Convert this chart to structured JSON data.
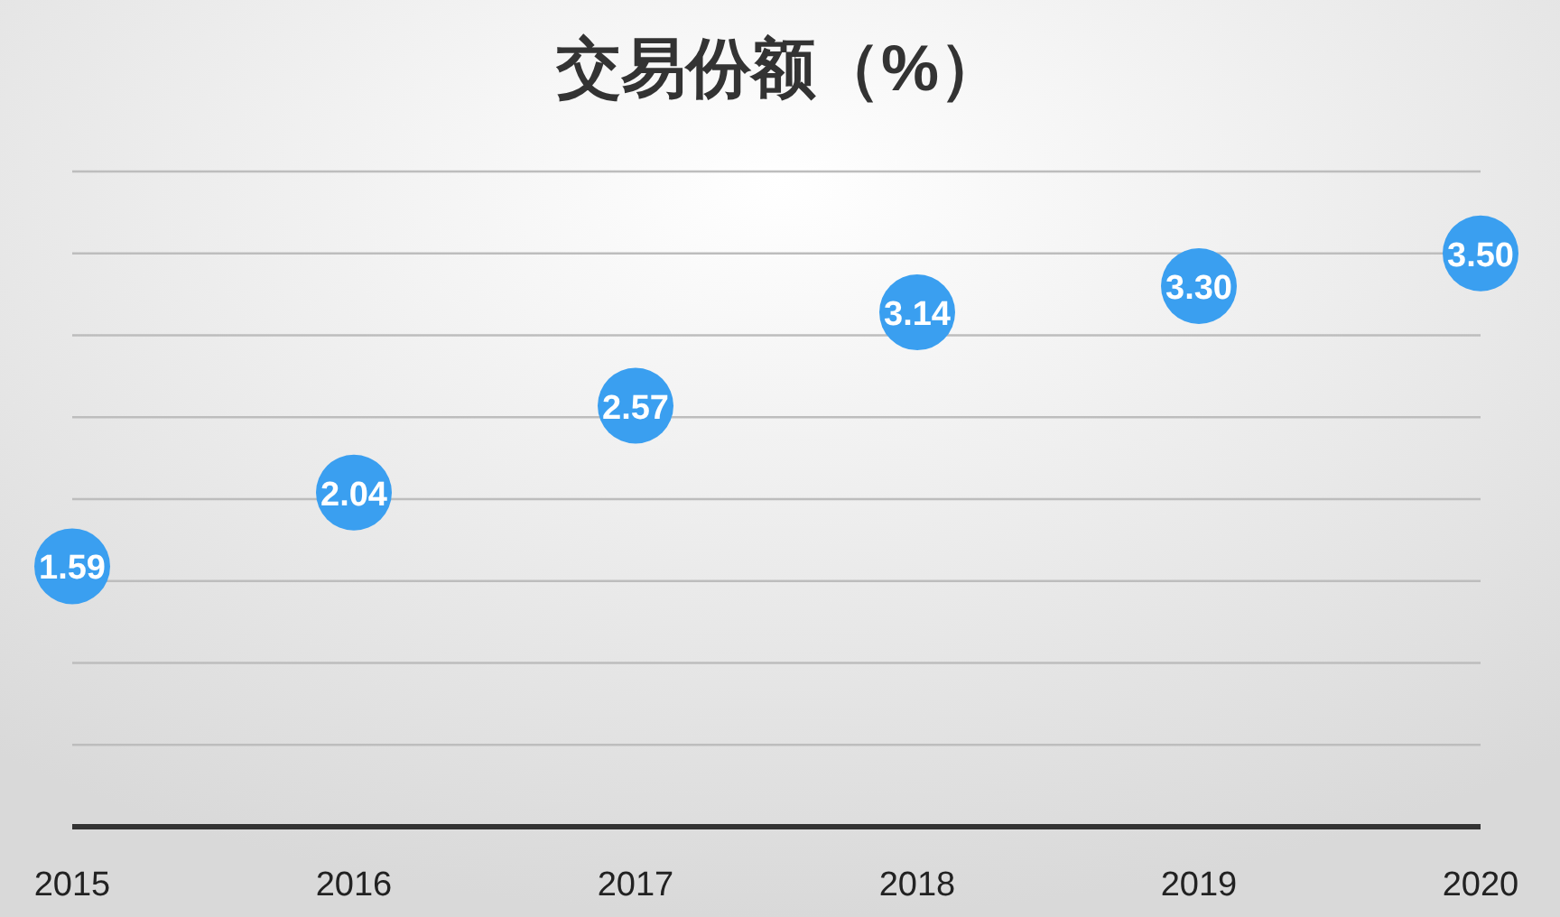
{
  "chart_data": {
    "type": "scatter",
    "title": "交易份额（%）",
    "categories": [
      "2015",
      "2016",
      "2017",
      "2018",
      "2019",
      "2020"
    ],
    "series": [
      {
        "color": "#3a9ff0",
        "values": [
          1.59,
          2.04,
          2.57,
          3.14,
          3.3,
          3.5
        ],
        "value_labels": [
          "1.59",
          "2.04",
          "2.57",
          "3.14",
          "3.30",
          "3.50"
        ]
      }
    ],
    "ylim": [
      0,
      4
    ],
    "yticks": [
      {
        "value": 0,
        "label": null
      },
      {
        "value": 0.5,
        "label": null
      },
      {
        "value": 1,
        "label": null
      },
      {
        "value": 1.5,
        "label": null
      },
      {
        "value": 2,
        "label": null
      },
      {
        "value": 2.5,
        "label": null
      },
      {
        "value": 3,
        "label": null
      },
      {
        "value": 3.5,
        "label": null
      },
      {
        "value": 4,
        "label": null
      }
    ],
    "grid": "y",
    "tick_labels": "x",
    "marker": "circle"
  }
}
